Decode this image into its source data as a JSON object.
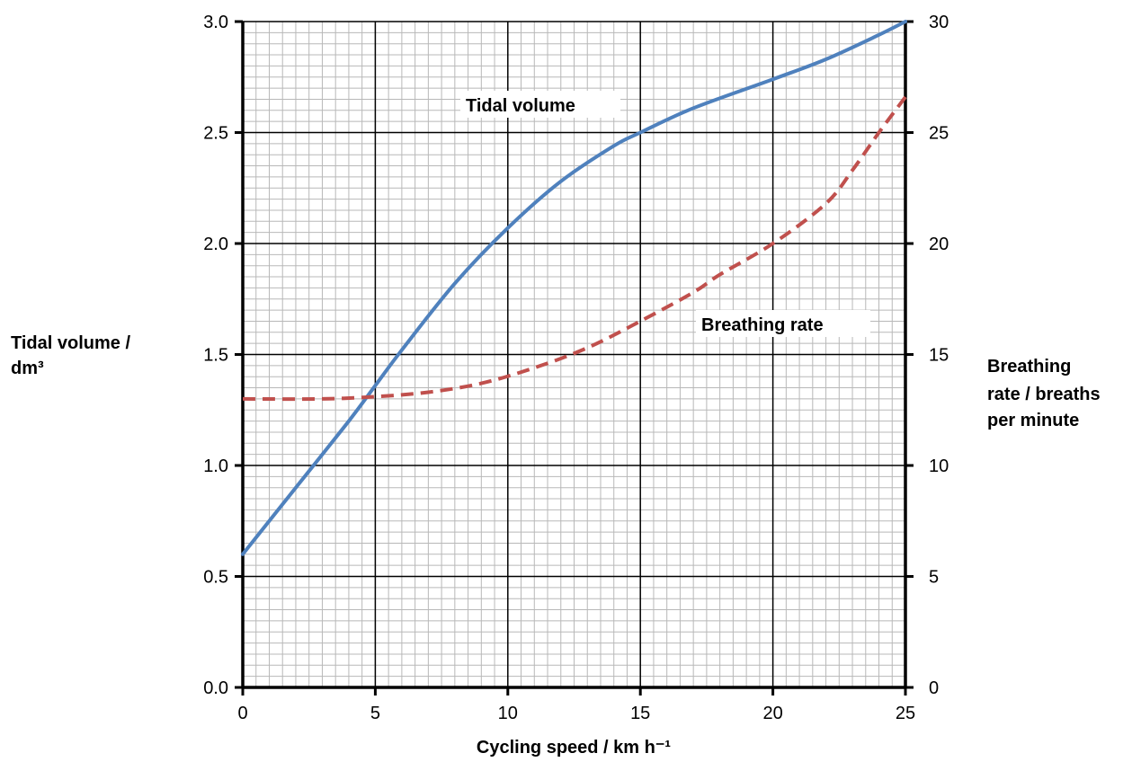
{
  "chart_data": {
    "type": "line",
    "xlabel": "Cycling speed / km h⁻¹",
    "ylabel_left": [
      "Tidal volume /",
      "dm³"
    ],
    "ylabel_right": [
      "Breathing",
      "rate / breaths",
      "per minute"
    ],
    "xlim": [
      0,
      25
    ],
    "ylim_left": [
      0,
      3.0
    ],
    "ylim_right": [
      0,
      30
    ],
    "x_ticks": [
      "0",
      "5",
      "10",
      "15",
      "20",
      "25"
    ],
    "y_ticks_left": [
      "0.0",
      "0.5",
      "1.0",
      "1.5",
      "2.0",
      "2.5",
      "3.0"
    ],
    "y_ticks_right": [
      "0",
      "5",
      "10",
      "15",
      "20",
      "25",
      "30"
    ],
    "grid": true,
    "series": [
      {
        "name": "Tidal volume",
        "axis": "left",
        "color": "#4f81bd",
        "style": "solid",
        "x": [
          0,
          2,
          4,
          5,
          6,
          8,
          10,
          12,
          14,
          15,
          17,
          20,
          22,
          24,
          25
        ],
        "y": [
          0.6,
          0.9,
          1.2,
          1.36,
          1.52,
          1.82,
          2.07,
          2.28,
          2.44,
          2.5,
          2.61,
          2.74,
          2.83,
          2.94,
          3.0
        ]
      },
      {
        "name": "Breathing rate",
        "axis": "right",
        "color": "#c0504d",
        "style": "dashed",
        "x": [
          0,
          3,
          5,
          7,
          9,
          11,
          13,
          15,
          17,
          18,
          20,
          22,
          23,
          24,
          25
        ],
        "y": [
          13.0,
          13.0,
          13.1,
          13.3,
          13.7,
          14.4,
          15.3,
          16.5,
          17.8,
          18.6,
          20.0,
          21.8,
          23.3,
          25.0,
          26.6
        ]
      }
    ]
  }
}
